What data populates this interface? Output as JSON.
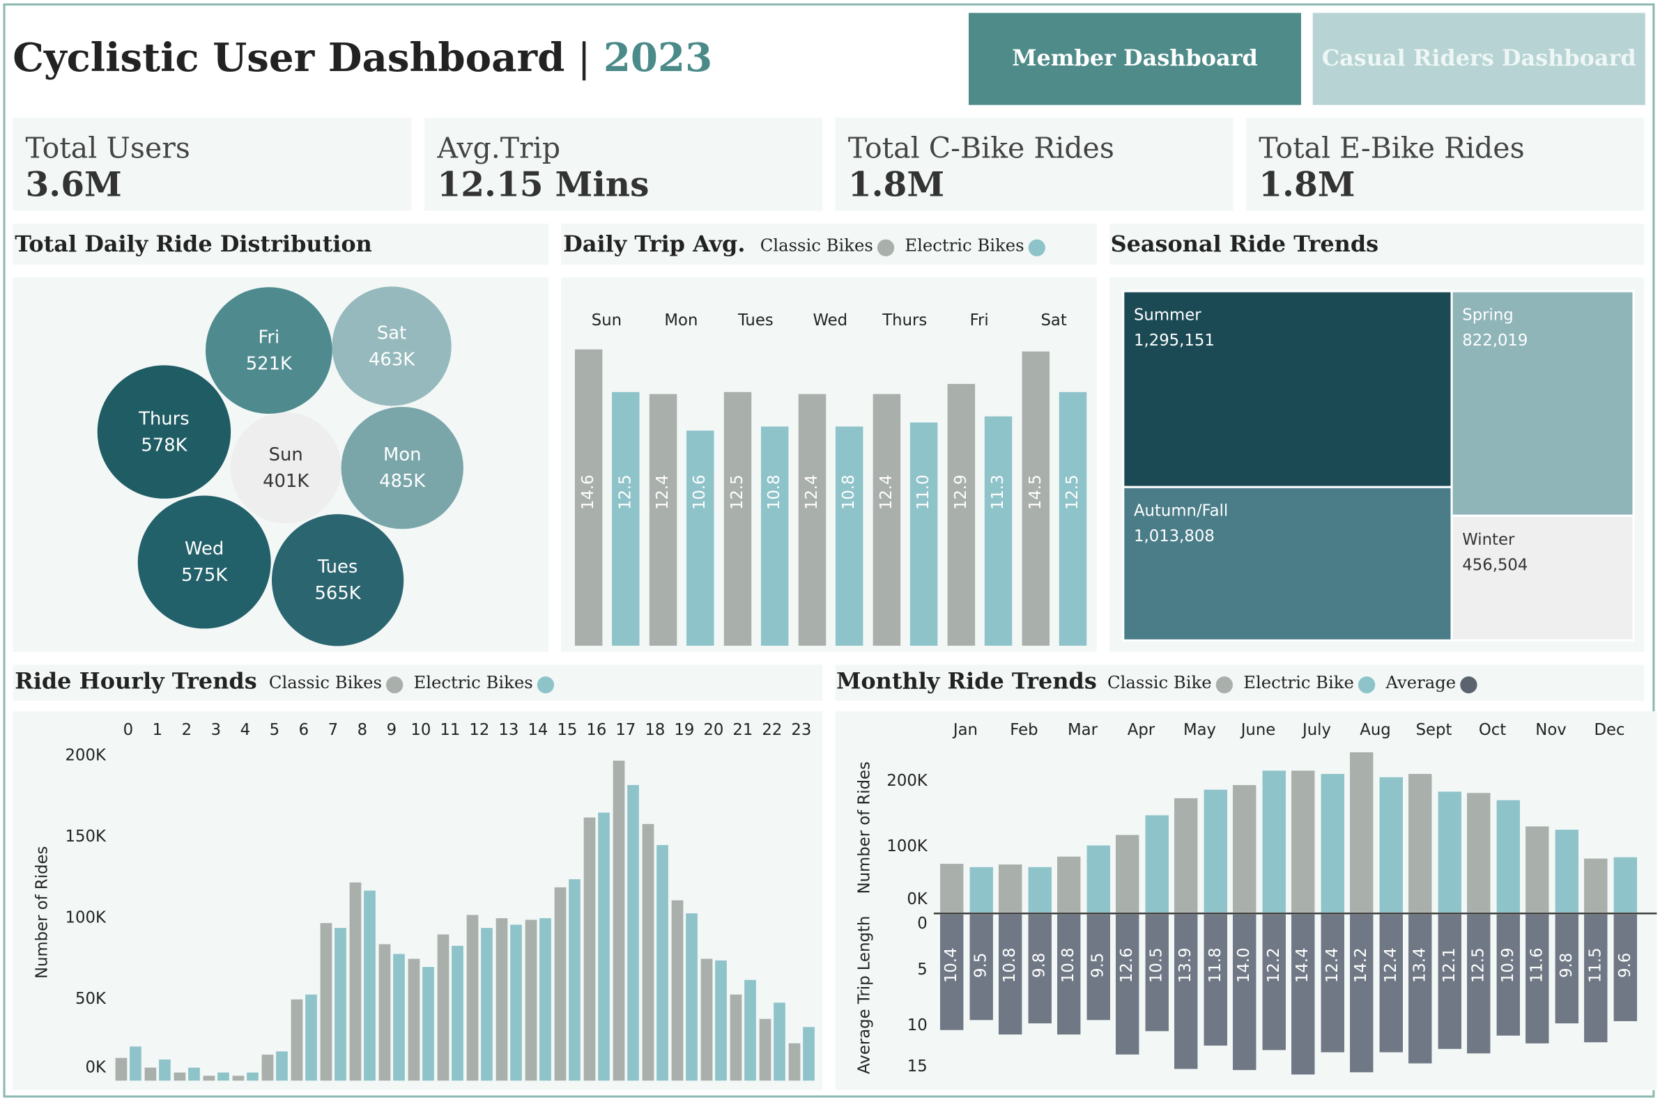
{
  "header": {
    "title": "Cyclistic User Dashboard",
    "separator": "|",
    "year": "2023"
  },
  "buttons": [
    "Member Dashboard",
    "Casual Riders Dashboard"
  ],
  "kpis": [
    {
      "label": "Total Users",
      "value": "3.6M"
    },
    {
      "label": "Avg.Trip",
      "value": "12.15 Mins"
    },
    {
      "label": "Total C-Bike Rides",
      "value": "1.8M"
    },
    {
      "label": "Total E-Bike Rides",
      "value": "1.8M"
    }
  ],
  "chart_data": [
    {
      "type": "bubble",
      "title": "Total Daily Ride Distribution",
      "categories": [
        "Fri",
        "Sat",
        "Thurs",
        "Sun",
        "Mon",
        "Wed",
        "Tues"
      ],
      "values": [
        521000,
        463000,
        578000,
        401000,
        485000,
        575000,
        565000
      ],
      "value_labels": [
        "521K",
        "463K",
        "578K",
        "401K",
        "485K",
        "575K",
        "565K"
      ],
      "colors": [
        "#4e8a8e",
        "#95b9bc",
        "#1f5c64",
        "#eeeeee",
        "#7aa6aa",
        "#22606a",
        "#2a6570"
      ]
    },
    {
      "type": "daily",
      "title": "Daily Trip Avg.",
      "categories": [
        "Sun",
        "Mon",
        "Tues",
        "Wed",
        "Thurs",
        "Fri",
        "Sat"
      ],
      "series": [
        {
          "name": "Classic Bikes",
          "color": "#a9afaa",
          "values": [
            14.6,
            12.4,
            12.5,
            12.4,
            12.4,
            12.9,
            14.5
          ],
          "value_labels": [
            "14.6",
            "12.4",
            "12.5",
            "12.4",
            "12.4",
            "12.9",
            "14.5"
          ]
        },
        {
          "name": "Electric Bikes",
          "color": "#8ec3c9",
          "values": [
            12.5,
            10.6,
            10.8,
            10.8,
            11.0,
            11.3,
            12.5
          ],
          "value_labels": [
            "12.5",
            "10.6",
            "10.8",
            "10.8",
            "11.0",
            "11.3",
            "12.5"
          ]
        }
      ]
    },
    {
      "type": "treemap",
      "title": "Seasonal Ride Trends",
      "categories": [
        "Summer",
        "Spring",
        "Autumn/Fall",
        "Winter"
      ],
      "values": [
        1295151,
        822019,
        1013808,
        456504
      ],
      "value_labels": [
        "1,295,151",
        "822,019",
        "1,013,808",
        "456,504"
      ],
      "colors": [
        "#1b4a55",
        "#8fb5b9",
        "#4a7d88",
        "#efefef"
      ]
    },
    {
      "type": "hourly",
      "title": "Ride Hourly Trends",
      "ylabel": "Number of Rides",
      "categories": [
        "0",
        "1",
        "2",
        "3",
        "4",
        "5",
        "6",
        "7",
        "8",
        "9",
        "10",
        "11",
        "12",
        "13",
        "14",
        "15",
        "16",
        "17",
        "18",
        "19",
        "20",
        "21",
        "22",
        "23"
      ],
      "ylim": [
        0,
        200000
      ],
      "yticks": [
        {
          "value": 0,
          "label": "0K"
        },
        {
          "value": 50000,
          "label": "50K"
        },
        {
          "value": 100000,
          "label": "100K"
        },
        {
          "value": 150000,
          "label": "150K"
        },
        {
          "value": 200000,
          "label": "200K"
        }
      ],
      "series": [
        {
          "name": "Classic Bikes",
          "color": "#a9afaa",
          "values": [
            14000,
            8000,
            5000,
            3000,
            3000,
            16000,
            50000,
            97000,
            122000,
            84000,
            75000,
            90000,
            102000,
            100000,
            99000,
            119000,
            162000,
            197000,
            158000,
            111000,
            75000,
            53000,
            38000,
            23000
          ]
        },
        {
          "name": "Electric Bikes",
          "color": "#8ec3c9",
          "values": [
            21000,
            13000,
            8000,
            5000,
            5000,
            18000,
            53000,
            94000,
            117000,
            78000,
            70000,
            83000,
            94000,
            96000,
            100000,
            124000,
            165000,
            182000,
            145000,
            103000,
            74000,
            62000,
            48000,
            33000
          ]
        }
      ]
    },
    {
      "type": "monthly",
      "title": "Monthly Ride Trends",
      "ylabel": "Number of Rides",
      "categories": [
        "Jan",
        "Feb",
        "Mar",
        "Apr",
        "May",
        "June",
        "July",
        "Aug",
        "Sept",
        "Oct",
        "Nov",
        "Dec"
      ],
      "ylim": [
        0,
        250000
      ],
      "yticks": [
        {
          "value": 0,
          "label": "0K"
        },
        {
          "value": 100000,
          "label": "100K"
        },
        {
          "value": 200000,
          "label": "200K"
        }
      ],
      "series": [
        {
          "name": "Classic Bike",
          "color": "#a9afaa",
          "values": [
            74000,
            73000,
            85000,
            118000,
            174000,
            194000,
            216000,
            244000,
            211000,
            182000,
            131000,
            82000
          ]
        },
        {
          "name": "Electric Bike",
          "color": "#8ec3c9",
          "values": [
            69000,
            69000,
            102000,
            148000,
            187000,
            216000,
            211000,
            206000,
            184000,
            171000,
            126000,
            84000
          ]
        }
      ],
      "trip_length": {
        "name": "Average",
        "color": "#6f7884",
        "ylabel": "Average Trip Length",
        "ylim": [
          0,
          15
        ],
        "yticks": [
          0,
          5,
          10,
          15
        ],
        "series": [
          {
            "values": [
              10.4,
              10.8,
              10.8,
              12.6,
              13.9,
              14.0,
              14.4,
              14.2,
              13.4,
              12.5,
              11.6,
              11.5
            ],
            "value_labels": [
              "10.4",
              "10.8",
              "10.8",
              "12.6",
              "13.9",
              "14.0",
              "14.4",
              "14.2",
              "13.4",
              "12.5",
              "11.6",
              "11.5"
            ]
          },
          {
            "values": [
              9.5,
              9.8,
              9.5,
              10.5,
              11.8,
              12.2,
              12.4,
              12.4,
              12.1,
              10.9,
              9.8,
              9.6
            ],
            "value_labels": [
              "9.5",
              "9.8",
              "9.5",
              "10.5",
              "11.8",
              "12.2",
              "12.4",
              "12.4",
              "12.1",
              "10.9",
              "9.8",
              "9.6"
            ]
          }
        ]
      }
    }
  ]
}
